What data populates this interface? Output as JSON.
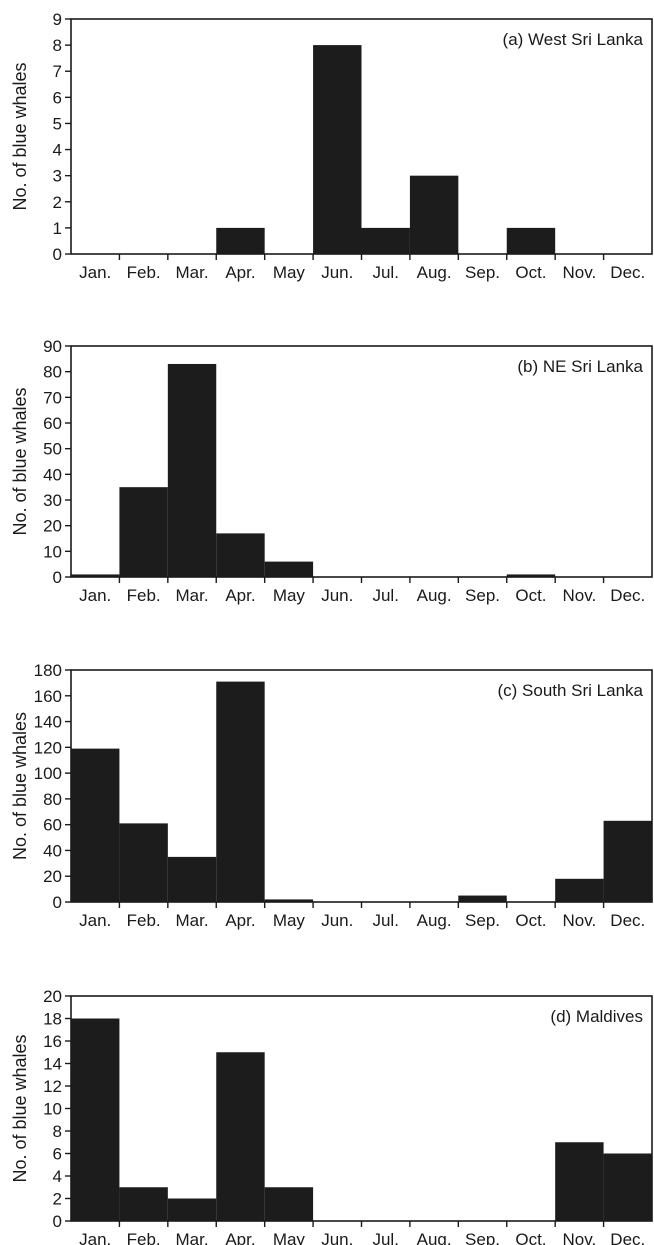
{
  "chart_data": [
    {
      "type": "bar",
      "title": "(a) West Sri Lanka",
      "xlabel": "",
      "ylabel": "No. of blue whales",
      "categories": [
        "Jan.",
        "Feb.",
        "Mar.",
        "Apr.",
        "May",
        "Jun.",
        "Jul.",
        "Aug.",
        "Sep.",
        "Oct.",
        "Nov.",
        "Dec."
      ],
      "values": [
        0,
        0,
        0,
        1,
        0,
        8,
        1,
        3,
        0,
        1,
        0,
        0
      ],
      "ylim": [
        0,
        9
      ],
      "yticks": [
        0,
        1,
        2,
        3,
        4,
        5,
        6,
        7,
        8,
        9
      ],
      "bar_color": "#1c1c1c",
      "grid": false,
      "legend": "top-right title"
    },
    {
      "type": "bar",
      "title": "(b) NE Sri Lanka",
      "xlabel": "",
      "ylabel": "No. of blue whales",
      "categories": [
        "Jan.",
        "Feb.",
        "Mar.",
        "Apr.",
        "May",
        "Jun.",
        "Jul.",
        "Aug.",
        "Sep.",
        "Oct.",
        "Nov.",
        "Dec."
      ],
      "values": [
        1,
        35,
        83,
        17,
        6,
        0,
        0,
        0,
        0,
        1,
        0,
        0
      ],
      "ylim": [
        0,
        90
      ],
      "yticks": [
        0,
        10,
        20,
        30,
        40,
        50,
        60,
        70,
        80,
        90
      ],
      "bar_color": "#1c1c1c",
      "grid": false,
      "legend": "top-right title"
    },
    {
      "type": "bar",
      "title": "(c) South Sri Lanka",
      "xlabel": "",
      "ylabel": "No. of blue whales",
      "categories": [
        "Jan.",
        "Feb.",
        "Mar.",
        "Apr.",
        "May",
        "Jun.",
        "Jul.",
        "Aug.",
        "Sep.",
        "Oct.",
        "Nov.",
        "Dec."
      ],
      "values": [
        119,
        61,
        35,
        171,
        2,
        0,
        0,
        0,
        5,
        0,
        18,
        63
      ],
      "ylim": [
        0,
        180
      ],
      "yticks": [
        0,
        20,
        40,
        60,
        80,
        100,
        120,
        140,
        160,
        180
      ],
      "bar_color": "#1c1c1c",
      "grid": false,
      "legend": "top-right title"
    },
    {
      "type": "bar",
      "title": "(d) Maldives",
      "xlabel": "",
      "ylabel": "No. of blue whales",
      "categories": [
        "Jan.",
        "Feb.",
        "Mar.",
        "Apr.",
        "May",
        "Jun.",
        "Jul.",
        "Aug.",
        "Sep.",
        "Oct.",
        "Nov.",
        "Dec."
      ],
      "values": [
        18,
        3,
        2,
        15,
        3,
        0,
        0,
        0,
        0,
        0,
        7,
        6
      ],
      "ylim": [
        0,
        20
      ],
      "yticks": [
        0,
        2,
        4,
        6,
        8,
        10,
        12,
        14,
        16,
        18,
        20
      ],
      "bar_color": "#1c1c1c",
      "grid": false,
      "legend": "top-right title"
    }
  ]
}
